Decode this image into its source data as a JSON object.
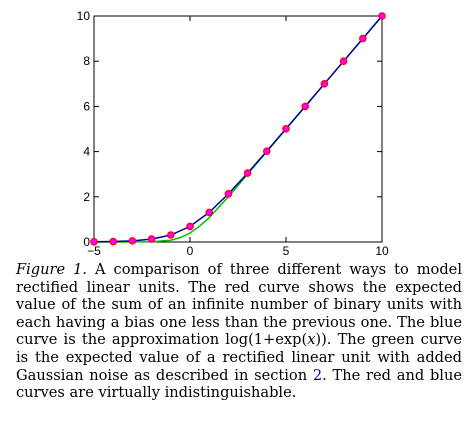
{
  "chart_data": {
    "type": "line",
    "title": "",
    "xlabel": "",
    "ylabel": "",
    "xlim": [
      -5,
      10
    ],
    "ylim": [
      0,
      10
    ],
    "xticks": [
      -5,
      0,
      5,
      10
    ],
    "yticks": [
      0,
      2,
      4,
      6,
      8,
      10
    ],
    "xtick_labels": [
      "−5",
      "0",
      "5",
      "10"
    ],
    "ytick_labels": [
      "0",
      "2",
      "4",
      "6",
      "8",
      "10"
    ],
    "grid": false,
    "series": [
      {
        "color": "#00c000",
        "style": "line",
        "x": [
          -5,
          -4,
          -3,
          -2,
          -1,
          -0.5,
          0,
          0.5,
          1,
          2,
          3,
          4,
          5,
          6,
          7,
          8,
          9,
          10
        ],
        "y": [
          0.0,
          0.0,
          0.0,
          0.01,
          0.08,
          0.2,
          0.4,
          0.7,
          1.08,
          2.0,
          3.0,
          4.0,
          5.0,
          6.0,
          7.0,
          8.0,
          9.0,
          10.0
        ]
      },
      {
        "color": "#000099",
        "style": "line",
        "x": [
          -5,
          -4,
          -3,
          -2,
          -1,
          0,
          1,
          2,
          3,
          4,
          5,
          6,
          7,
          8,
          9,
          10
        ],
        "y": [
          0.01,
          0.02,
          0.05,
          0.13,
          0.31,
          0.69,
          1.31,
          2.13,
          3.05,
          4.02,
          5.01,
          6.0,
          7.0,
          8.0,
          9.0,
          10.0
        ]
      },
      {
        "color": "#ff0000",
        "style": "markers",
        "marker_fill": "#ff00ff",
        "x": [
          -5,
          -4,
          -3,
          -2,
          -1,
          0,
          1,
          2,
          3,
          4,
          5,
          6,
          7,
          8,
          9,
          10
        ],
        "y": [
          0.01,
          0.02,
          0.05,
          0.13,
          0.31,
          0.69,
          1.31,
          2.13,
          3.05,
          4.02,
          5.01,
          6.0,
          7.0,
          8.0,
          9.0,
          10.0
        ]
      }
    ]
  },
  "caption": {
    "label": "Figure 1.",
    "text_1": " A comparison of three different ways to model rectified linear units.  The red curve shows the expected value of the sum of an infinite number of binary units with each having a bias one less than the previous one. The blue curve is the approximation log(1+exp(",
    "math_var": "x",
    "text_2": ")). The green curve is the expected value of a rectified linear unit with added Gaussian noise as described in section ",
    "section_ref": "2",
    "text_3": ". The red and blue curves are virtually indistinguishable."
  }
}
